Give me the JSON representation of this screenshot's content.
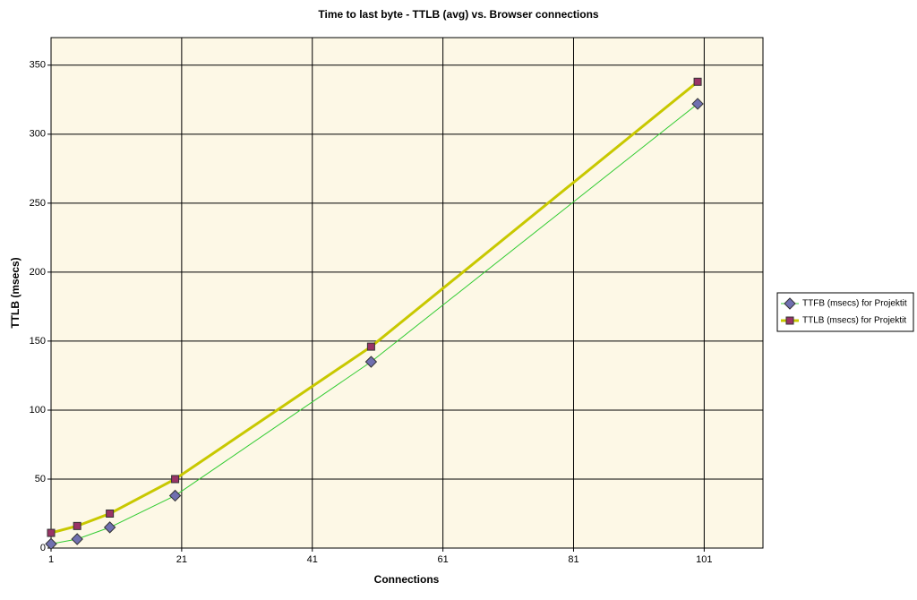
{
  "chart_data": {
    "type": "line",
    "title": "Time to last byte - TTLB (avg) vs. Browser connections",
    "x_label": "Connections",
    "y_label": "TTLB (msecs)",
    "x": [
      1,
      5,
      10,
      20,
      50,
      100
    ],
    "series": [
      {
        "name": "TTFB (msecs) for Projektit",
        "color": "#33cc33",
        "marker": "diamond",
        "marker_color": "#7070b0",
        "line_width": 1,
        "values": [
          3,
          6.5,
          15,
          38,
          135,
          322
        ]
      },
      {
        "name": "TTLB (msecs) for Projektit",
        "color": "#c8c800",
        "marker": "square",
        "marker_color": "#993366",
        "line_width": 3,
        "values": [
          11,
          16,
          25,
          50,
          146,
          338
        ]
      }
    ],
    "xlim": [
      1,
      110
    ],
    "xticks": [
      1,
      21,
      41,
      61,
      81,
      101
    ],
    "ylim": [
      0,
      370
    ],
    "yticks": [
      0,
      50,
      100,
      150,
      200,
      250,
      300,
      350
    ],
    "grid": true,
    "legend": "right",
    "plot_background": "#fdf8e6"
  }
}
